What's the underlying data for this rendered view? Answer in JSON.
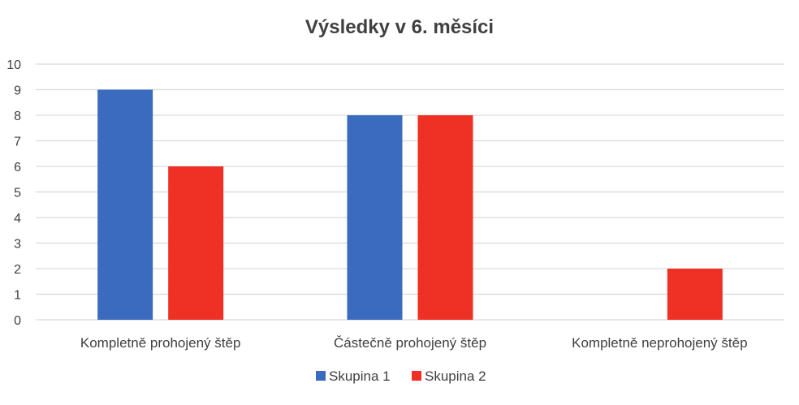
{
  "chart_data": {
    "type": "bar",
    "title": "Výsledky v 6. měsíci",
    "xlabel": "",
    "ylabel": "",
    "categories": [
      "Kompletně prohojený štěp",
      "Částečně prohojený štěp",
      "Kompletně neprohojený štěp"
    ],
    "series": [
      {
        "name": "Skupina 1",
        "color": "#3A6BBE",
        "values": [
          9,
          8,
          0
        ]
      },
      {
        "name": "Skupina 2",
        "color": "#EE3124",
        "values": [
          6,
          8,
          2
        ]
      }
    ],
    "ylim": [
      0,
      10
    ],
    "yticks": [
      0,
      1,
      2,
      3,
      4,
      5,
      6,
      7,
      8,
      9,
      10
    ],
    "grid": true,
    "legend_position": "bottom"
  }
}
